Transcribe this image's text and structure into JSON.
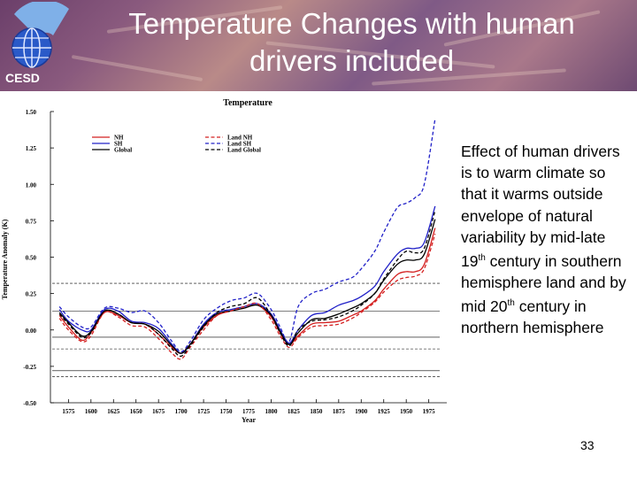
{
  "slide": {
    "title": "Temperature Changes with human drivers included",
    "logo_text": "CESD",
    "side_text_parts": [
      "Effect of human drivers is to warm climate so that it warms outside envelope of natural variability by mid-late 19",
      "th",
      " century in southern hemisphere land and by mid 20",
      "th",
      " century in northern hemisphere"
    ],
    "page_number": "33"
  },
  "chart_data": {
    "type": "line",
    "title": "Temperature",
    "xlabel": "Year",
    "ylabel": "Temperature Anomaly (K)",
    "xlim": [
      1555,
      1995
    ],
    "ylim": [
      -0.5,
      1.5
    ],
    "xticks": [
      "1575",
      "1600",
      "1625",
      "1650",
      "1675",
      "1700",
      "1725",
      "1750",
      "1775",
      "1800",
      "1825",
      "1850",
      "1875",
      "1900",
      "1925",
      "1950",
      "1975"
    ],
    "yticks": [
      "-0.50",
      "-0.25",
      "0.00",
      "0.25",
      "0.50",
      "0.75",
      "1.00",
      "1.25",
      "1.50"
    ],
    "legend": [
      "NH",
      "SH",
      "Global",
      "Land NH",
      "Land SH",
      "Land Global"
    ],
    "legend_position": "top-left",
    "reference_lines": [
      {
        "y": 0.13,
        "style": "solid"
      },
      {
        "y": -0.05,
        "style": "solid"
      },
      {
        "y": -0.28,
        "style": "solid"
      },
      {
        "y": 0.32,
        "style": "dashed"
      },
      {
        "y": -0.13,
        "style": "dashed"
      },
      {
        "y": -0.32,
        "style": "dashed"
      }
    ],
    "x": [
      1565,
      1575,
      1590,
      1600,
      1615,
      1630,
      1645,
      1660,
      1675,
      1690,
      1700,
      1710,
      1725,
      1740,
      1755,
      1770,
      1785,
      1800,
      1810,
      1820,
      1830,
      1845,
      1860,
      1875,
      1890,
      1900,
      1915,
      1925,
      1940,
      1950,
      1960,
      1970,
      1982
    ],
    "series": [
      {
        "name": "NH",
        "color": "#d42020",
        "style": "solid",
        "values": [
          0.1,
          0.02,
          -0.07,
          -0.02,
          0.12,
          0.1,
          0.05,
          0.04,
          -0.03,
          -0.12,
          -0.16,
          -0.1,
          0.02,
          0.1,
          0.13,
          0.15,
          0.17,
          0.09,
          -0.02,
          -0.1,
          -0.04,
          0.04,
          0.05,
          0.06,
          0.1,
          0.13,
          0.2,
          0.28,
          0.38,
          0.4,
          0.4,
          0.45,
          0.7
        ]
      },
      {
        "name": "SH",
        "color": "#2020c8",
        "style": "solid",
        "values": [
          0.14,
          0.06,
          0.0,
          0.0,
          0.14,
          0.13,
          0.06,
          0.05,
          0.01,
          -0.1,
          -0.16,
          -0.1,
          0.04,
          0.12,
          0.14,
          0.16,
          0.18,
          0.11,
          0.0,
          -0.09,
          0.0,
          0.1,
          0.12,
          0.17,
          0.2,
          0.23,
          0.3,
          0.4,
          0.52,
          0.56,
          0.56,
          0.6,
          0.85
        ]
      },
      {
        "name": "Global",
        "color": "#000000",
        "style": "solid",
        "values": [
          0.12,
          0.05,
          -0.04,
          -0.01,
          0.13,
          0.11,
          0.05,
          0.04,
          -0.01,
          -0.11,
          -0.16,
          -0.1,
          0.03,
          0.11,
          0.13,
          0.15,
          0.17,
          0.1,
          -0.01,
          -0.1,
          -0.02,
          0.07,
          0.08,
          0.11,
          0.15,
          0.18,
          0.25,
          0.34,
          0.45,
          0.48,
          0.48,
          0.52,
          0.76
        ]
      },
      {
        "name": "Land NH",
        "color": "#d42020",
        "style": "dashed",
        "values": [
          0.08,
          0.0,
          -0.08,
          -0.04,
          0.12,
          0.09,
          0.03,
          0.02,
          -0.06,
          -0.16,
          -0.2,
          -0.12,
          0.0,
          0.1,
          0.13,
          0.16,
          0.18,
          0.07,
          -0.04,
          -0.12,
          -0.05,
          0.02,
          0.03,
          0.04,
          0.08,
          0.12,
          0.19,
          0.26,
          0.34,
          0.36,
          0.37,
          0.42,
          0.66
        ]
      },
      {
        "name": "Land SH",
        "color": "#2020c8",
        "style": "dashed",
        "values": [
          0.16,
          0.09,
          0.02,
          0.02,
          0.15,
          0.15,
          0.12,
          0.13,
          0.05,
          -0.08,
          -0.15,
          -0.08,
          0.07,
          0.15,
          0.2,
          0.22,
          0.25,
          0.14,
          0.02,
          -0.08,
          0.16,
          0.25,
          0.28,
          0.33,
          0.36,
          0.42,
          0.54,
          0.67,
          0.84,
          0.87,
          0.91,
          1.0,
          1.45
        ]
      },
      {
        "name": "Land Global",
        "color": "#000000",
        "style": "dashed",
        "values": [
          0.11,
          0.04,
          -0.05,
          -0.02,
          0.13,
          0.11,
          0.05,
          0.04,
          -0.03,
          -0.13,
          -0.18,
          -0.11,
          0.02,
          0.12,
          0.16,
          0.18,
          0.22,
          0.1,
          -0.02,
          -0.11,
          0.0,
          0.06,
          0.07,
          0.09,
          0.13,
          0.17,
          0.25,
          0.35,
          0.48,
          0.54,
          0.53,
          0.56,
          0.82
        ]
      }
    ]
  }
}
